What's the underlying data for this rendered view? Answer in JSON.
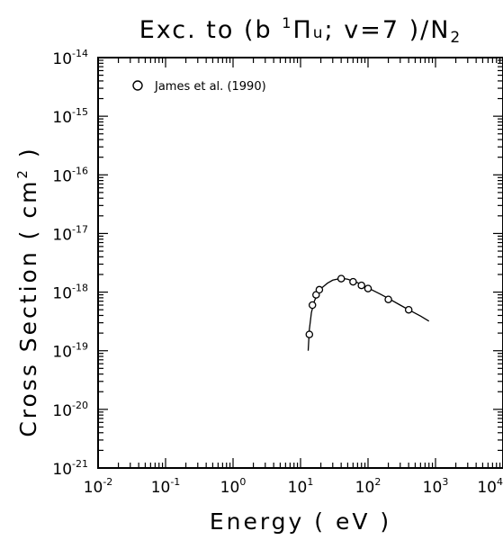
{
  "chart_data": {
    "type": "scatter",
    "title": {
      "prefix": "Exc. to (b ",
      "superscript": "1",
      "symbol": "Π",
      "subscript": "u",
      "middle": "; v=7 )/N",
      "subscript2": "2"
    },
    "xlabel": "Energy ( eV )",
    "ylabel": {
      "prefix": "Cross Section ( cm",
      "superscript": "2",
      "suffix": " )"
    },
    "x_scale": "log",
    "y_scale": "log",
    "xlim": [
      0.01,
      10000
    ],
    "ylim": [
      1e-21,
      1e-14
    ],
    "x_ticks": [
      {
        "value": 0.01,
        "base": "10",
        "exp": "-2"
      },
      {
        "value": 0.1,
        "base": "10",
        "exp": "-1"
      },
      {
        "value": 1,
        "base": "10",
        "exp": "0"
      },
      {
        "value": 10,
        "base": "10",
        "exp": "1"
      },
      {
        "value": 100,
        "base": "10",
        "exp": "2"
      },
      {
        "value": 1000,
        "base": "10",
        "exp": "3"
      },
      {
        "value": 10000,
        "base": "10",
        "exp": "4"
      }
    ],
    "y_ticks": [
      {
        "value": 1e-21,
        "base": "10",
        "exp": "-21"
      },
      {
        "value": 1e-20,
        "base": "10",
        "exp": "-20"
      },
      {
        "value": 1e-19,
        "base": "10",
        "exp": "-19"
      },
      {
        "value": 1e-18,
        "base": "10",
        "exp": "-18"
      },
      {
        "value": 1e-17,
        "base": "10",
        "exp": "-17"
      },
      {
        "value": 1e-16,
        "base": "10",
        "exp": "-16"
      },
      {
        "value": 1e-15,
        "base": "10",
        "exp": "-15"
      },
      {
        "value": 1e-14,
        "base": "10",
        "exp": "-14"
      }
    ],
    "grid": false,
    "legend_position": "top-left",
    "series": [
      {
        "name": "James et al. (1990)",
        "marker": "open-circle",
        "points": [
          {
            "x": 13.5,
            "y": 1.9e-19
          },
          {
            "x": 15,
            "y": 6e-19
          },
          {
            "x": 17,
            "y": 9e-19
          },
          {
            "x": 19,
            "y": 1.1e-18
          },
          {
            "x": 40,
            "y": 1.7e-18
          },
          {
            "x": 60,
            "y": 1.5e-18
          },
          {
            "x": 80,
            "y": 1.3e-18
          },
          {
            "x": 100,
            "y": 1.15e-18
          },
          {
            "x": 200,
            "y": 7.5e-19
          },
          {
            "x": 400,
            "y": 5e-19
          }
        ]
      }
    ],
    "fit_curve": [
      {
        "x": 13.0,
        "y": 1e-19
      },
      {
        "x": 13.5,
        "y": 2.3e-19
      },
      {
        "x": 14.5,
        "y": 4.5e-19
      },
      {
        "x": 16,
        "y": 7e-19
      },
      {
        "x": 18,
        "y": 9.5e-19
      },
      {
        "x": 21,
        "y": 1.2e-18
      },
      {
        "x": 25,
        "y": 1.42e-18
      },
      {
        "x": 30,
        "y": 1.6e-18
      },
      {
        "x": 40,
        "y": 1.72e-18
      },
      {
        "x": 50,
        "y": 1.66e-18
      },
      {
        "x": 70,
        "y": 1.45e-18
      },
      {
        "x": 100,
        "y": 1.18e-18
      },
      {
        "x": 150,
        "y": 9.3e-19
      },
      {
        "x": 200,
        "y": 7.8e-19
      },
      {
        "x": 300,
        "y": 6e-19
      },
      {
        "x": 400,
        "y": 5e-19
      },
      {
        "x": 600,
        "y": 3.9e-19
      },
      {
        "x": 800,
        "y": 3.2e-19
      }
    ],
    "colors": {
      "axis": "#000000",
      "marker": "#000000",
      "line": "#000000"
    }
  }
}
